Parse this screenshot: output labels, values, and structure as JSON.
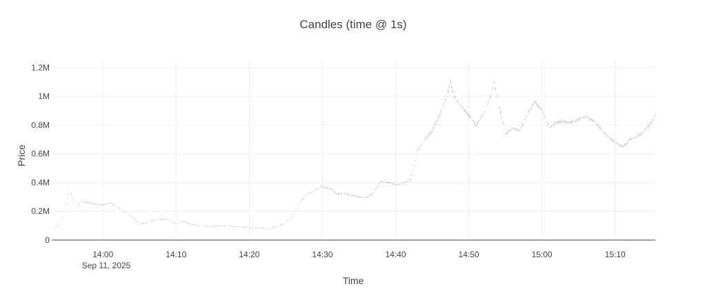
{
  "chart_data": {
    "type": "candlestick",
    "title": "Candles (time @ 1s)",
    "xlabel": "Time",
    "ylabel": "Price",
    "x_date_label": "Sep 11, 2025",
    "x_start": "13:53:00",
    "x_end": "15:15:30",
    "xlim": [
      "13:53:00",
      "15:15:30"
    ],
    "ylim": [
      0,
      1250000
    ],
    "grid": true,
    "candle_color": "#b0b0b0",
    "x_ticks": [
      "14:00",
      "14:10",
      "14:20",
      "14:30",
      "14:40",
      "14:50",
      "15:00",
      "15:10"
    ],
    "y_ticks": [
      {
        "value": 0,
        "label": "0"
      },
      {
        "value": 200000,
        "label": "0.2M"
      },
      {
        "value": 400000,
        "label": "0.4M"
      },
      {
        "value": 600000,
        "label": "0.6M"
      },
      {
        "value": 800000,
        "label": "0.8M"
      },
      {
        "value": 1000000,
        "label": "1M"
      },
      {
        "value": 1200000,
        "label": "1.2M"
      }
    ],
    "price_path": [
      [
        "13:53:00",
        20000
      ],
      [
        "13:53:30",
        90000
      ],
      [
        "13:54:00",
        100000
      ],
      [
        "13:54:30",
        160000
      ],
      [
        "13:55:00",
        250000
      ],
      [
        "13:55:30",
        350000
      ],
      [
        "13:56:00",
        260000
      ],
      [
        "13:56:30",
        230000
      ],
      [
        "13:57:00",
        270000
      ],
      [
        "13:58:00",
        260000
      ],
      [
        "13:59:00",
        250000
      ],
      [
        "14:00:00",
        245000
      ],
      [
        "14:01:00",
        260000
      ],
      [
        "14:02:00",
        230000
      ],
      [
        "14:03:00",
        200000
      ],
      [
        "14:04:00",
        160000
      ],
      [
        "14:05:00",
        110000
      ],
      [
        "14:06:00",
        120000
      ],
      [
        "14:07:00",
        140000
      ],
      [
        "14:08:00",
        145000
      ],
      [
        "14:09:00",
        140000
      ],
      [
        "14:10:00",
        110000
      ],
      [
        "14:11:00",
        130000
      ],
      [
        "14:12:00",
        110000
      ],
      [
        "14:13:00",
        100000
      ],
      [
        "14:15:00",
        95000
      ],
      [
        "14:17:00",
        100000
      ],
      [
        "14:19:00",
        90000
      ],
      [
        "14:21:00",
        85000
      ],
      [
        "14:23:00",
        80000
      ],
      [
        "14:24:00",
        95000
      ],
      [
        "14:25:00",
        120000
      ],
      [
        "14:26:00",
        170000
      ],
      [
        "14:27:00",
        270000
      ],
      [
        "14:28:00",
        320000
      ],
      [
        "14:29:00",
        350000
      ],
      [
        "14:30:00",
        370000
      ],
      [
        "14:31:00",
        360000
      ],
      [
        "14:32:00",
        320000
      ],
      [
        "14:33:00",
        325000
      ],
      [
        "14:34:00",
        310000
      ],
      [
        "14:35:00",
        300000
      ],
      [
        "14:36:00",
        295000
      ],
      [
        "14:37:00",
        330000
      ],
      [
        "14:38:00",
        410000
      ],
      [
        "14:39:00",
        400000
      ],
      [
        "14:40:00",
        385000
      ],
      [
        "14:41:00",
        395000
      ],
      [
        "14:42:00",
        420000
      ],
      [
        "14:43:00",
        620000
      ],
      [
        "14:44:00",
        700000
      ],
      [
        "14:45:00",
        760000
      ],
      [
        "14:46:00",
        870000
      ],
      [
        "14:47:00",
        1000000
      ],
      [
        "14:47:30",
        1100000
      ],
      [
        "14:48:00",
        1000000
      ],
      [
        "14:49:00",
        930000
      ],
      [
        "14:50:00",
        870000
      ],
      [
        "14:51:00",
        800000
      ],
      [
        "14:52:00",
        880000
      ],
      [
        "14:53:00",
        1000000
      ],
      [
        "14:53:30",
        1100000
      ],
      [
        "14:54:00",
        960000
      ],
      [
        "14:55:00",
        740000
      ],
      [
        "14:56:00",
        780000
      ],
      [
        "14:57:00",
        760000
      ],
      [
        "14:58:00",
        880000
      ],
      [
        "14:59:00",
        960000
      ],
      [
        "15:00:00",
        910000
      ],
      [
        "15:01:00",
        780000
      ],
      [
        "15:02:00",
        820000
      ],
      [
        "15:03:00",
        825000
      ],
      [
        "15:04:00",
        820000
      ],
      [
        "15:05:00",
        840000
      ],
      [
        "15:06:00",
        860000
      ],
      [
        "15:07:00",
        830000
      ],
      [
        "15:08:00",
        780000
      ],
      [
        "15:09:00",
        720000
      ],
      [
        "15:10:00",
        680000
      ],
      [
        "15:11:00",
        650000
      ],
      [
        "15:12:00",
        700000
      ],
      [
        "15:13:00",
        720000
      ],
      [
        "15:14:00",
        760000
      ],
      [
        "15:15:00",
        820000
      ],
      [
        "15:15:30",
        870000
      ]
    ]
  }
}
